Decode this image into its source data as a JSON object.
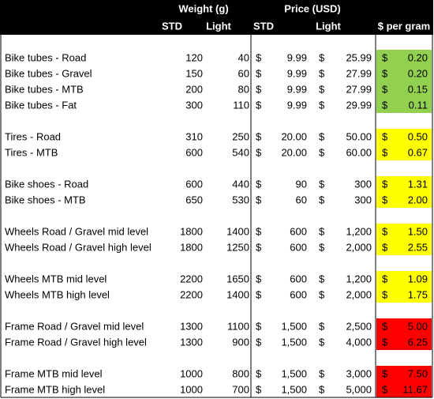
{
  "header": {
    "weight": "Weight (g)",
    "price": "Price (USD)",
    "std": "STD",
    "light": "Light",
    "per_gram": "$ per gram"
  },
  "currency": "$",
  "groups": [
    {
      "color": "#92d050",
      "rows": [
        {
          "item": "Bike tubes - Road",
          "weight_std": "120",
          "weight_light": "40",
          "price_std": "9.99",
          "price_light": "25.99",
          "per_gram": "0.20"
        },
        {
          "item": "Bike tubes - Gravel",
          "weight_std": "150",
          "weight_light": "60",
          "price_std": "9.99",
          "price_light": "27.99",
          "per_gram": "0.20"
        },
        {
          "item": "Bike tubes - MTB",
          "weight_std": "200",
          "weight_light": "80",
          "price_std": "9.99",
          "price_light": "27.99",
          "per_gram": "0.15"
        },
        {
          "item": "Bike tubes - Fat",
          "weight_std": "300",
          "weight_light": "110",
          "price_std": "9.99",
          "price_light": "29.99",
          "per_gram": "0.11"
        }
      ]
    },
    {
      "color": "#ffff00",
      "rows": [
        {
          "item": "Tires - Road",
          "weight_std": "310",
          "weight_light": "250",
          "price_std": "20.00",
          "price_light": "50.00",
          "per_gram": "0.50"
        },
        {
          "item": "Tires - MTB",
          "weight_std": "600",
          "weight_light": "540",
          "price_std": "20.00",
          "price_light": "60.00",
          "per_gram": "0.67"
        }
      ]
    },
    {
      "color": "#ffff00",
      "rows": [
        {
          "item": "Bike shoes - Road",
          "weight_std": "600",
          "weight_light": "440",
          "price_std": "90",
          "price_light": "300",
          "per_gram": "1.31"
        },
        {
          "item": "Bike shoes - MTB",
          "weight_std": "650",
          "weight_light": "530",
          "price_std": "60",
          "price_light": "300",
          "per_gram": "2.00"
        }
      ]
    },
    {
      "color": "#ffff00",
      "rows": [
        {
          "item": "Wheels Road / Gravel mid level",
          "weight_std": "1800",
          "weight_light": "1400",
          "price_std": "600",
          "price_light": "1,200",
          "per_gram": "1.50"
        },
        {
          "item": "Wheels Road / Gravel high level",
          "weight_std": "1800",
          "weight_light": "1250",
          "price_std": "600",
          "price_light": "2,000",
          "per_gram": "2.55"
        }
      ]
    },
    {
      "color": "#ffff00",
      "rows": [
        {
          "item": "Wheels MTB mid level",
          "weight_std": "2200",
          "weight_light": "1650",
          "price_std": "600",
          "price_light": "1,200",
          "per_gram": "1.09"
        },
        {
          "item": "Wheels MTB high level",
          "weight_std": "2200",
          "weight_light": "1400",
          "price_std": "600",
          "price_light": "2,000",
          "per_gram": "1.75"
        }
      ]
    },
    {
      "color": "#ff0000",
      "rows": [
        {
          "item": "Frame Road / Gravel mid level",
          "weight_std": "1300",
          "weight_light": "1100",
          "price_std": "1,500",
          "price_light": "2,500",
          "per_gram": "5.00"
        },
        {
          "item": "Frame Road / Gravel high level",
          "weight_std": "1300",
          "weight_light": "900",
          "price_std": "1,500",
          "price_light": "4,000",
          "per_gram": "6.25"
        }
      ]
    },
    {
      "color": "#ff0000",
      "rows": [
        {
          "item": "Frame MTB mid level",
          "weight_std": "1000",
          "weight_light": "800",
          "price_std": "1,500",
          "price_light": "3,000",
          "per_gram": "7.50"
        },
        {
          "item": "Frame MTB high level",
          "weight_std": "1000",
          "weight_light": "700",
          "price_std": "1,500",
          "price_light": "5,000",
          "per_gram": "11.67"
        }
      ]
    }
  ]
}
